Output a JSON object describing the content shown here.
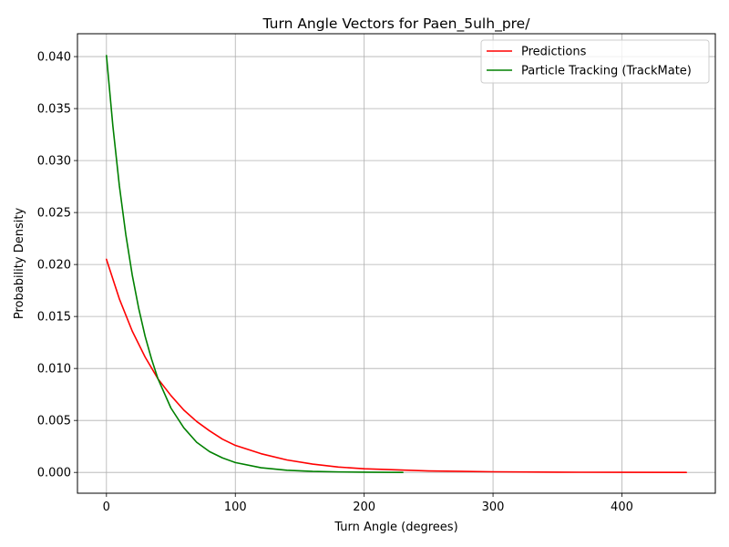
{
  "chart_data": {
    "type": "line",
    "title": "Turn Angle Vectors for Paen_5ulh_pre/",
    "xlabel": "Turn Angle (degrees)",
    "ylabel": "Probability Density",
    "xlim": [
      -22.5,
      472.5
    ],
    "ylim": [
      -0.002,
      0.0422
    ],
    "xticks": [
      0,
      100,
      200,
      300,
      400
    ],
    "xtick_labels": [
      "0",
      "100",
      "200",
      "300",
      "400"
    ],
    "yticks": [
      0,
      0.005,
      0.01,
      0.015,
      0.02,
      0.025,
      0.03,
      0.035,
      0.04
    ],
    "ytick_labels": [
      "0.000",
      "0.005",
      "0.010",
      "0.015",
      "0.020",
      "0.025",
      "0.030",
      "0.035",
      "0.040"
    ],
    "grid": true,
    "legend_position": "top-right",
    "series": [
      {
        "name": "Predictions",
        "color": "#ff0000",
        "x": [
          0,
          10,
          20,
          30,
          40,
          50,
          60,
          70,
          80,
          90,
          100,
          120,
          140,
          160,
          180,
          200,
          250,
          300,
          350,
          400,
          450
        ],
        "values": [
          0.0205,
          0.0167,
          0.0136,
          0.0111,
          0.009,
          0.0074,
          0.006,
          0.0049,
          0.004,
          0.0032,
          0.0026,
          0.0018,
          0.0012,
          0.0008,
          0.00052,
          0.00035,
          0.00014,
          6e-05,
          2e-05,
          1e-05,
          0.0
        ]
      },
      {
        "name": "Particle Tracking (TrackMate)",
        "color": "#008000",
        "x": [
          0,
          5,
          10,
          15,
          20,
          25,
          30,
          35,
          40,
          50,
          60,
          70,
          80,
          90,
          100,
          120,
          140,
          160,
          180,
          200,
          230
        ],
        "values": [
          0.0401,
          0.0333,
          0.0276,
          0.0229,
          0.019,
          0.0158,
          0.0131,
          0.0109,
          0.009,
          0.0062,
          0.0043,
          0.0029,
          0.002,
          0.0014,
          0.00095,
          0.00045,
          0.00021,
          0.0001,
          5e-05,
          2e-05,
          0.0
        ]
      }
    ]
  }
}
